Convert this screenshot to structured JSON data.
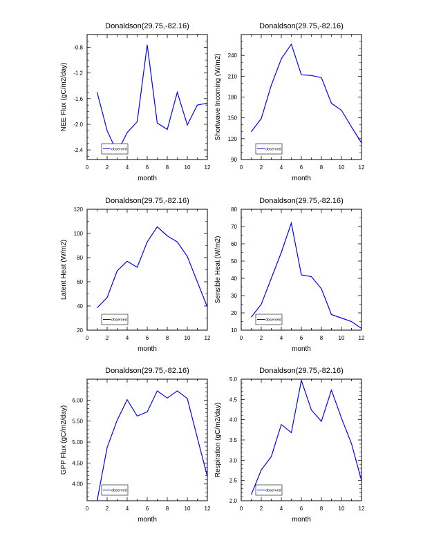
{
  "figure": {
    "line_color": "#0000ff"
  },
  "chart_data": [
    {
      "type": "line",
      "title": "Donaldson(29.75,-82.16)",
      "xlabel": "month",
      "ylabel": "NEE Flux (gC/m2/day)",
      "xlim": [
        0,
        12
      ],
      "ylim": [
        -2.55,
        -0.6
      ],
      "x_ticks": [
        "0",
        "2",
        "4",
        "6",
        "8",
        "10",
        "12"
      ],
      "y_ticks": [
        -2.4,
        -2.0,
        -1.6,
        -1.2,
        -0.8
      ],
      "y_tick_labels": [
        "-2.4",
        "-2.0",
        "-1.6",
        "-1.2",
        "-0.8"
      ],
      "y_minor": [
        -2.5,
        -2.3,
        -2.2,
        -2.1,
        -1.9,
        -1.8,
        -1.7,
        -1.5,
        -1.4,
        -1.3,
        -1.1,
        -1.0,
        -0.9,
        -0.7,
        -0.6
      ],
      "series": [
        {
          "name": "observed",
          "x": [
            1,
            2,
            3,
            4,
            5,
            6,
            7,
            8,
            9,
            10,
            11,
            12
          ],
          "values": [
            -1.5,
            -2.1,
            -2.44,
            -2.13,
            -1.96,
            -0.76,
            -1.98,
            -2.08,
            -1.5,
            -2.01,
            -1.7,
            -1.67
          ]
        }
      ],
      "legend": {
        "location": "bottom-left",
        "labels": [
          "observed"
        ]
      }
    },
    {
      "type": "line",
      "title": "Donaldson(29.75,-82.16)",
      "xlabel": "month",
      "ylabel": "Shortwave Incoming (W/m2)",
      "xlim": [
        0,
        12
      ],
      "ylim": [
        90,
        270
      ],
      "x_ticks": [
        "0",
        "2",
        "4",
        "6",
        "8",
        "10",
        "12"
      ],
      "y_ticks": [
        90,
        120,
        150,
        180,
        210,
        240
      ],
      "y_tick_labels": [
        "90",
        "120",
        "150",
        "180",
        "210",
        "240"
      ],
      "y_minor": [
        100,
        110,
        130,
        140,
        160,
        170,
        190,
        200,
        220,
        230,
        250,
        260,
        270
      ],
      "series": [
        {
          "name": "observed",
          "x": [
            1,
            2,
            3,
            4,
            5,
            6,
            7,
            8,
            9,
            10,
            11,
            12
          ],
          "values": [
            130,
            149,
            197,
            235,
            256,
            212,
            211,
            208,
            171,
            161,
            137,
            114
          ]
        }
      ],
      "legend": {
        "location": "bottom-left",
        "labels": [
          "observed"
        ]
      }
    },
    {
      "type": "line",
      "title": "Donaldson(29.75,-82.16)",
      "xlabel": "month",
      "ylabel": "Latent Heat (W/m2)",
      "xlim": [
        0,
        12
      ],
      "ylim": [
        20,
        120
      ],
      "x_ticks": [
        "0",
        "2",
        "4",
        "6",
        "8",
        "10",
        "12"
      ],
      "y_ticks": [
        20,
        40,
        60,
        80,
        100,
        120
      ],
      "y_tick_labels": [
        "20",
        "40",
        "60",
        "80",
        "100",
        "120"
      ],
      "y_minor": [
        30,
        50,
        70,
        90,
        110
      ],
      "series": [
        {
          "name": "observed",
          "x": [
            1,
            2,
            3,
            4,
            5,
            6,
            7,
            8,
            9,
            10,
            11,
            12
          ],
          "values": [
            38.5,
            47,
            69,
            77,
            72,
            93,
            105.5,
            98,
            93,
            81,
            60,
            39
          ]
        }
      ],
      "legend": {
        "location": "bottom-left",
        "labels": [
          "observed"
        ]
      }
    },
    {
      "type": "line",
      "title": "Donaldson(29.75,-82.16)",
      "xlabel": "month",
      "ylabel": "Sensible Heat (W/m2)",
      "xlim": [
        0,
        12
      ],
      "ylim": [
        10,
        80
      ],
      "x_ticks": [
        "0",
        "2",
        "4",
        "6",
        "8",
        "10",
        "12"
      ],
      "y_ticks": [
        10,
        20,
        30,
        40,
        50,
        60,
        70,
        80
      ],
      "y_tick_labels": [
        "10",
        "20",
        "30",
        "40",
        "50",
        "60",
        "70",
        "80"
      ],
      "y_minor": [
        15,
        25,
        35,
        45,
        55,
        65,
        75
      ],
      "series": [
        {
          "name": "observed",
          "x": [
            1,
            2,
            3,
            4,
            5,
            6,
            7,
            8,
            9,
            10,
            11,
            12
          ],
          "values": [
            17.5,
            25,
            40,
            55,
            72,
            42,
            41,
            34,
            19,
            17,
            15,
            11
          ]
        }
      ],
      "legend": {
        "location": "bottom-left",
        "labels": [
          "observed"
        ]
      }
    },
    {
      "type": "line",
      "title": "Donaldson(29.75,-82.16)",
      "xlabel": "month",
      "ylabel": "GPP Flux (gC/m2/day)",
      "xlim": [
        0,
        12
      ],
      "ylim": [
        3.6,
        6.5
      ],
      "x_ticks": [
        "0",
        "2",
        "4",
        "6",
        "8",
        "10",
        "12"
      ],
      "y_ticks": [
        4.0,
        4.5,
        5.0,
        5.5,
        6.0
      ],
      "y_tick_labels": [
        "4.00",
        "4.50",
        "5.00",
        "5.50",
        "6.00"
      ],
      "y_minor": [
        3.7,
        3.8,
        3.9,
        4.1,
        4.2,
        4.3,
        4.4,
        4.6,
        4.7,
        4.8,
        4.9,
        5.1,
        5.2,
        5.3,
        5.4,
        5.6,
        5.7,
        5.8,
        5.9,
        6.1,
        6.2,
        6.3,
        6.4
      ],
      "series": [
        {
          "name": "observed",
          "x": [
            1,
            2,
            3,
            4,
            5,
            6,
            7,
            8,
            9,
            10,
            11,
            12
          ],
          "values": [
            3.6,
            4.87,
            5.52,
            6.01,
            5.62,
            5.72,
            6.22,
            6.05,
            6.22,
            6.04,
            5.1,
            4.18
          ]
        }
      ],
      "legend": {
        "location": "bottom-left",
        "labels": [
          "observed"
        ]
      }
    },
    {
      "type": "line",
      "title": "Donaldson(29.75,-82.16)",
      "xlabel": "month",
      "ylabel": "Respiration (gC/m2/day)",
      "xlim": [
        0,
        12
      ],
      "ylim": [
        2.0,
        5.0
      ],
      "x_ticks": [
        "0",
        "2",
        "4",
        "6",
        "8",
        "10",
        "12"
      ],
      "y_ticks": [
        2.0,
        2.5,
        3.0,
        3.5,
        4.0,
        4.5,
        5.0
      ],
      "y_tick_labels": [
        "2.0",
        "2.5",
        "3.0",
        "3.5",
        "4.0",
        "4.5",
        "5.0"
      ],
      "y_minor": [
        2.1,
        2.2,
        2.3,
        2.4,
        2.6,
        2.7,
        2.8,
        2.9,
        3.1,
        3.2,
        3.3,
        3.4,
        3.6,
        3.7,
        3.8,
        3.9,
        4.1,
        4.2,
        4.3,
        4.4,
        4.6,
        4.7,
        4.8,
        4.9
      ],
      "series": [
        {
          "name": "observed",
          "x": [
            1,
            2,
            3,
            4,
            5,
            6,
            7,
            8,
            9,
            10,
            11,
            12
          ],
          "values": [
            2.15,
            2.76,
            3.09,
            3.88,
            3.68,
            4.97,
            4.24,
            3.96,
            4.73,
            4.04,
            3.41,
            2.5
          ]
        }
      ],
      "legend": {
        "location": "bottom-left",
        "labels": [
          "observed"
        ]
      }
    }
  ]
}
